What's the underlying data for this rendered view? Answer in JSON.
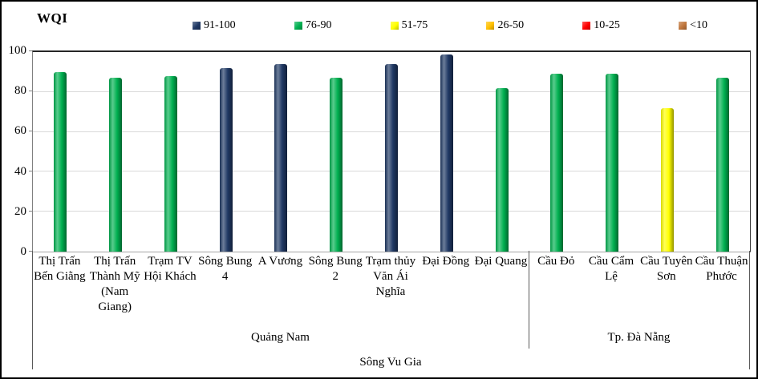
{
  "title": "WQI",
  "colors": {
    "blue": "#1F3864",
    "green": "#00B050",
    "yellow": "#FFFF00",
    "orange": "#FFC000",
    "red": "#FF0000",
    "brown": "#C0763C"
  },
  "legend": [
    {
      "label": "91-100",
      "color_key": "blue"
    },
    {
      "label": "76-90",
      "color_key": "green"
    },
    {
      "label": "51-75",
      "color_key": "yellow"
    },
    {
      "label": "26-50",
      "color_key": "orange"
    },
    {
      "label": "10-25",
      "color_key": "red"
    },
    {
      "label": "<10",
      "color_key": "brown"
    }
  ],
  "chart_data": {
    "type": "bar",
    "title": "WQI",
    "ylim": [
      0,
      100
    ],
    "yticks": [
      0,
      20,
      40,
      60,
      80,
      100
    ],
    "grid": true,
    "legend_position": "top",
    "categories": [
      "Thị Trấn Bến Giằng",
      "Thị Trấn Thành Mỹ (Nam Giang)",
      "Trạm TV Hội Khách",
      "Sông Bung 4",
      "A Vương",
      "Sông Bung 2",
      "Trạm thủy Văn Ái Nghĩa",
      "Đại Đồng",
      "Đại Quang",
      "Cầu Đỏ",
      "Cầu Cẩm Lệ",
      "Cầu Tuyên Sơn",
      "Cầu Thuận Phước"
    ],
    "values": [
      90,
      87,
      88,
      92,
      94,
      87,
      94,
      99,
      82,
      89,
      89,
      72,
      87
    ],
    "groups": [
      {
        "name": "Quảng Nam",
        "stations": [
          {
            "name": "Thị Trấn Bến Giằng",
            "lines": [
              "Thị Trấn",
              "Bến Giằng"
            ],
            "value": 90
          },
          {
            "name": "Thị Trấn Thành Mỹ (Nam Giang)",
            "lines": [
              "Thị Trấn",
              "Thành Mỹ",
              "(Nam",
              "Giang)"
            ],
            "value": 87
          },
          {
            "name": "Trạm TV Hội Khách",
            "lines": [
              "Trạm TV",
              "Hội Khách"
            ],
            "value": 88
          },
          {
            "name": "Sông Bung 4",
            "lines": [
              "Sông Bung",
              "4"
            ],
            "value": 92
          },
          {
            "name": "A Vương",
            "lines": [
              "A Vương"
            ],
            "value": 94
          },
          {
            "name": "Sông Bung 2",
            "lines": [
              "Sông Bung",
              "2"
            ],
            "value": 87
          },
          {
            "name": "Trạm thủy Văn Ái Nghĩa",
            "lines": [
              "Trạm thủy",
              "Văn Ái",
              "Nghĩa"
            ],
            "value": 94
          },
          {
            "name": "Đại Đồng",
            "lines": [
              "Đại Đồng"
            ],
            "value": 99
          },
          {
            "name": "Đại Quang",
            "lines": [
              "Đại Quang"
            ],
            "value": 82
          }
        ]
      },
      {
        "name": "Tp. Đà Nẵng",
        "stations": [
          {
            "name": "Cầu Đỏ",
            "lines": [
              "Cầu Đỏ"
            ],
            "value": 89
          },
          {
            "name": "Cầu Cẩm Lệ",
            "lines": [
              "Cầu Cẩm",
              "Lệ"
            ],
            "value": 89
          },
          {
            "name": "Cầu Tuyên Sơn",
            "lines": [
              "Cầu Tuyên",
              "Sơn"
            ],
            "value": 72
          },
          {
            "name": "Cầu Thuận Phước",
            "lines": [
              "Cầu Thuận",
              "Phước"
            ],
            "value": 87
          }
        ]
      }
    ],
    "xlabel_bottom": "Sông Vu Gia"
  }
}
